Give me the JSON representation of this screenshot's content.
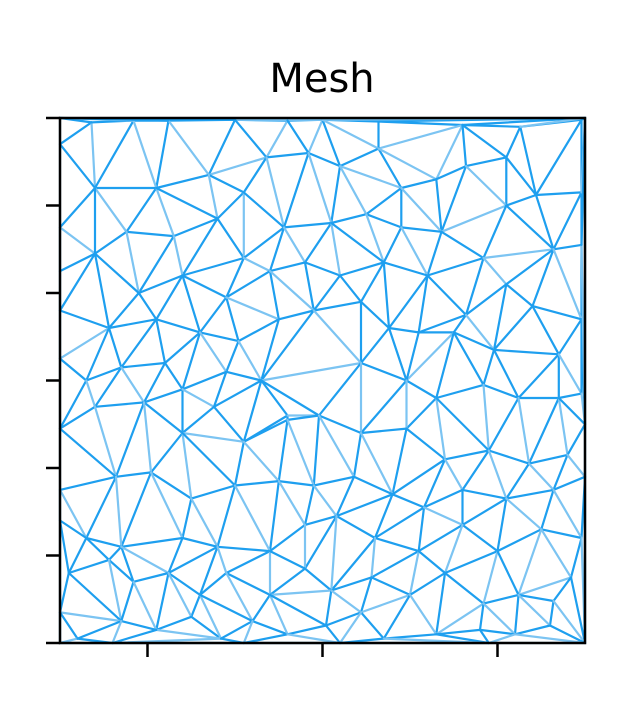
{
  "chart_data": {
    "type": "mesh",
    "title": "Mesh",
    "xlabel": "",
    "ylabel": "",
    "xlim": [
      0,
      3
    ],
    "ylim": [
      0,
      6
    ],
    "x_ticks": [
      0.5,
      1.5,
      2.5
    ],
    "y_ticks": [
      0,
      1,
      2,
      3,
      4,
      5,
      6
    ],
    "x_tick_labels_visible": false,
    "y_tick_labels_visible": false,
    "grid": false,
    "colors": {
      "edge_dark": "#1E9FEF",
      "edge_light": "#7CC4F2",
      "frame": "#000000"
    },
    "nodes": [
      [
        0.0,
        5.7
      ],
      [
        0.18,
        5.95
      ],
      [
        0.42,
        5.97
      ],
      [
        0.62,
        5.97
      ],
      [
        1.0,
        5.98
      ],
      [
        1.3,
        5.97
      ],
      [
        1.5,
        5.98
      ],
      [
        1.82,
        5.96
      ],
      [
        2.3,
        5.92
      ],
      [
        2.63,
        5.9
      ],
      [
        2.98,
        5.98
      ],
      [
        0.2,
        5.2
      ],
      [
        0.55,
        5.2
      ],
      [
        0.85,
        5.35
      ],
      [
        1.05,
        5.15
      ],
      [
        1.18,
        5.55
      ],
      [
        1.42,
        5.6
      ],
      [
        1.6,
        5.45
      ],
      [
        1.82,
        5.65
      ],
      [
        1.95,
        5.2
      ],
      [
        2.15,
        5.3
      ],
      [
        2.32,
        5.45
      ],
      [
        2.55,
        5.55
      ],
      [
        2.72,
        5.12
      ],
      [
        2.98,
        5.15
      ],
      [
        0.0,
        4.75
      ],
      [
        0.38,
        4.7
      ],
      [
        0.65,
        4.65
      ],
      [
        0.9,
        4.85
      ],
      [
        1.05,
        4.4
      ],
      [
        1.28,
        4.75
      ],
      [
        1.55,
        4.8
      ],
      [
        1.75,
        4.9
      ],
      [
        1.95,
        4.75
      ],
      [
        2.18,
        4.7
      ],
      [
        2.42,
        4.4
      ],
      [
        2.55,
        5.0
      ],
      [
        2.82,
        4.5
      ],
      [
        2.98,
        4.55
      ],
      [
        0.0,
        4.25
      ],
      [
        0.2,
        4.45
      ],
      [
        0.45,
        4.0
      ],
      [
        0.7,
        4.2
      ],
      [
        0.95,
        3.95
      ],
      [
        1.2,
        4.25
      ],
      [
        1.4,
        4.35
      ],
      [
        1.6,
        4.2
      ],
      [
        1.85,
        4.35
      ],
      [
        2.1,
        4.2
      ],
      [
        2.32,
        3.75
      ],
      [
        2.55,
        4.1
      ],
      [
        2.7,
        3.85
      ],
      [
        2.98,
        3.7
      ],
      [
        0.0,
        3.8
      ],
      [
        0.28,
        3.6
      ],
      [
        0.55,
        3.7
      ],
      [
        0.8,
        3.55
      ],
      [
        1.02,
        3.45
      ],
      [
        1.25,
        3.7
      ],
      [
        1.45,
        3.8
      ],
      [
        1.72,
        3.9
      ],
      [
        1.88,
        3.6
      ],
      [
        2.05,
        3.55
      ],
      [
        2.25,
        3.55
      ],
      [
        2.48,
        3.35
      ],
      [
        2.85,
        3.3
      ],
      [
        0.0,
        3.25
      ],
      [
        0.15,
        3.0
      ],
      [
        0.35,
        3.15
      ],
      [
        0.6,
        3.2
      ],
      [
        0.7,
        2.9
      ],
      [
        0.95,
        3.1
      ],
      [
        1.15,
        3.0
      ],
      [
        1.3,
        2.6
      ],
      [
        1.72,
        3.2
      ],
      [
        1.98,
        3.0
      ],
      [
        2.15,
        2.8
      ],
      [
        2.42,
        2.95
      ],
      [
        2.62,
        2.8
      ],
      [
        2.85,
        2.8
      ],
      [
        2.98,
        2.85
      ],
      [
        0.0,
        2.45
      ],
      [
        0.2,
        2.7
      ],
      [
        0.48,
        2.75
      ],
      [
        0.7,
        2.4
      ],
      [
        0.88,
        2.7
      ],
      [
        1.05,
        2.3
      ],
      [
        1.3,
        2.55
      ],
      [
        1.48,
        2.6
      ],
      [
        1.72,
        2.4
      ],
      [
        1.98,
        2.45
      ],
      [
        2.2,
        2.1
      ],
      [
        2.45,
        2.2
      ],
      [
        2.68,
        2.05
      ],
      [
        2.9,
        2.15
      ],
      [
        3.0,
        2.5
      ],
      [
        0.0,
        1.75
      ],
      [
        0.32,
        1.9
      ],
      [
        0.52,
        1.95
      ],
      [
        0.75,
        1.65
      ],
      [
        1.0,
        1.8
      ],
      [
        1.25,
        1.85
      ],
      [
        1.45,
        1.8
      ],
      [
        1.68,
        1.9
      ],
      [
        1.9,
        1.7
      ],
      [
        2.08,
        1.55
      ],
      [
        2.3,
        1.75
      ],
      [
        2.55,
        1.65
      ],
      [
        2.82,
        1.75
      ],
      [
        3.0,
        1.9
      ],
      [
        0.0,
        1.4
      ],
      [
        0.15,
        1.2
      ],
      [
        0.35,
        1.1
      ],
      [
        0.7,
        1.2
      ],
      [
        0.9,
        1.1
      ],
      [
        1.2,
        1.05
      ],
      [
        1.4,
        1.35
      ],
      [
        1.58,
        1.45
      ],
      [
        1.8,
        1.2
      ],
      [
        2.05,
        1.05
      ],
      [
        2.3,
        1.35
      ],
      [
        2.5,
        1.05
      ],
      [
        2.75,
        1.3
      ],
      [
        2.98,
        1.2
      ],
      [
        0.05,
        0.8
      ],
      [
        0.28,
        0.95
      ],
      [
        0.42,
        0.7
      ],
      [
        0.62,
        0.8
      ],
      [
        0.8,
        0.55
      ],
      [
        0.95,
        0.8
      ],
      [
        1.2,
        0.55
      ],
      [
        1.4,
        0.85
      ],
      [
        1.55,
        0.6
      ],
      [
        1.78,
        0.75
      ],
      [
        2.0,
        0.55
      ],
      [
        2.2,
        0.8
      ],
      [
        2.42,
        0.45
      ],
      [
        2.62,
        0.55
      ],
      [
        2.82,
        0.48
      ],
      [
        2.92,
        0.75
      ],
      [
        0.0,
        0.35
      ],
      [
        0.1,
        0.05
      ],
      [
        0.35,
        0.25
      ],
      [
        0.55,
        0.15
      ],
      [
        0.75,
        0.3
      ],
      [
        0.92,
        0.05
      ],
      [
        1.1,
        0.25
      ],
      [
        1.3,
        0.1
      ],
      [
        1.52,
        0.2
      ],
      [
        1.72,
        0.35
      ],
      [
        1.85,
        0.05
      ],
      [
        2.15,
        0.1
      ],
      [
        2.4,
        0.15
      ],
      [
        2.6,
        0.1
      ],
      [
        2.8,
        0.2
      ],
      [
        3.0,
        0.0
      ],
      [
        0.0,
        0.0
      ],
      [
        0.3,
        0.0
      ],
      [
        1.05,
        0.0
      ],
      [
        1.6,
        0.0
      ],
      [
        2.45,
        0.0
      ],
      [
        3.0,
        6.0
      ],
      [
        0.0,
        6.0
      ]
    ]
  }
}
